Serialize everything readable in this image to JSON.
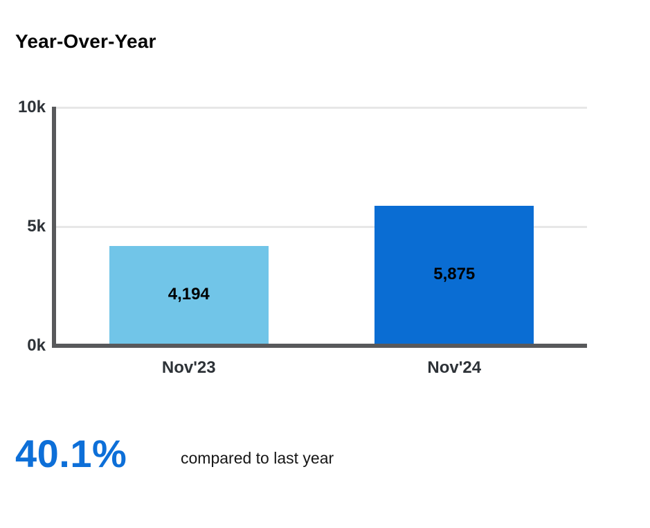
{
  "header": {
    "title": "Year-Over-Year"
  },
  "chart_data": {
    "type": "bar",
    "title": "Year-Over-Year",
    "categories": [
      "Nov'23",
      "Nov'24"
    ],
    "values": [
      4194,
      5875
    ],
    "value_labels": [
      "4,194",
      "5,875"
    ],
    "series_colors": [
      "#71c5e8",
      "#0a6dd3"
    ],
    "xlabel": "",
    "ylabel": "",
    "ylim": [
      0,
      10000
    ],
    "yticks": [
      {
        "label": "10k",
        "value": 10000
      },
      {
        "label": "5k",
        "value": 5000
      },
      {
        "label": "0k",
        "value": 0
      }
    ],
    "grid": true,
    "legend_position": "none"
  },
  "kpi": {
    "value": "40.1%",
    "caption": "compared to last year"
  },
  "colors": {
    "axis": "#58595b",
    "gridline": "#e7e7e7",
    "tick_label": "#2d3237",
    "bar_label": "#000000",
    "kpi_value": "#0d6fd8",
    "caption_text": "#161616"
  }
}
